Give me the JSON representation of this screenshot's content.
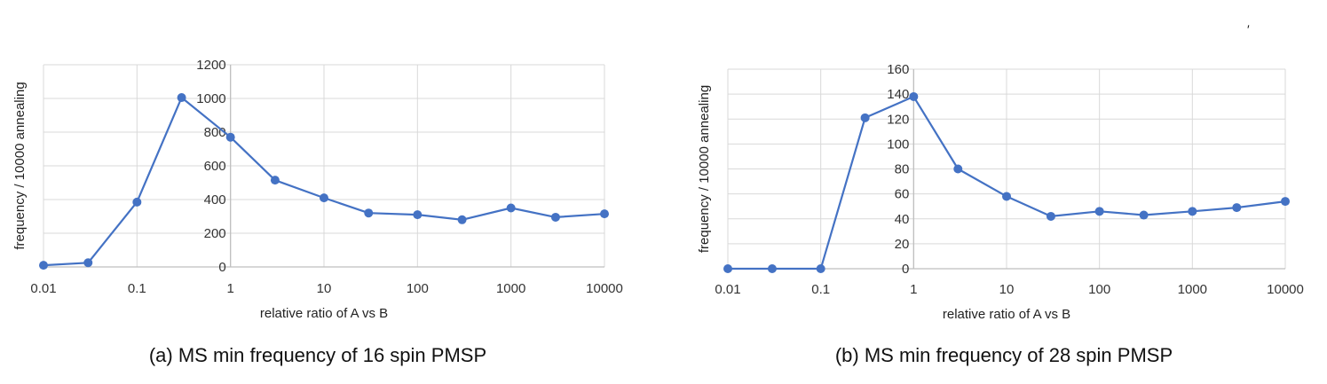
{
  "stray_mark": "′",
  "chart_data": [
    {
      "type": "line",
      "caption": "(a) MS min frequency of 16 spin PMSP",
      "xlabel": "relative ratio of A vs B",
      "ylabel": "frequency / 10000 annealing",
      "xscale": "log",
      "xlim": [
        0.01,
        10000
      ],
      "ylim": [
        0,
        1200
      ],
      "xticks": [
        "0.01",
        "0.1",
        "1",
        "10",
        "100",
        "1000",
        "10000"
      ],
      "yticks": [
        "0",
        "200",
        "400",
        "600",
        "800",
        "1000",
        "1200"
      ],
      "grid": true,
      "y_axis_crosses_at": 1,
      "series_color": "#4472c4",
      "x": [
        0.01,
        0.03,
        0.1,
        0.3,
        1,
        3,
        10,
        30,
        100,
        300,
        1000,
        3000,
        10000
      ],
      "y": [
        10,
        25,
        385,
        1005,
        770,
        515,
        410,
        320,
        310,
        280,
        350,
        295,
        315
      ]
    },
    {
      "type": "line",
      "caption": "(b) MS min frequency of 28 spin PMSP",
      "xlabel": "relative ratio of A vs B",
      "ylabel": "frequency / 10000 annealing",
      "xscale": "log",
      "xlim": [
        0.01,
        10000
      ],
      "ylim": [
        0,
        160
      ],
      "xticks": [
        "0.01",
        "0.1",
        "1",
        "10",
        "100",
        "1000",
        "10000"
      ],
      "yticks": [
        "0",
        "20",
        "40",
        "60",
        "80",
        "100",
        "120",
        "140",
        "160"
      ],
      "grid": true,
      "y_axis_crosses_at": 1,
      "series_color": "#4472c4",
      "x": [
        0.01,
        0.03,
        0.1,
        0.3,
        1,
        3,
        10,
        30,
        100,
        300,
        1000,
        3000,
        10000
      ],
      "y": [
        0,
        0,
        0,
        121,
        138,
        80,
        58,
        42,
        46,
        43,
        46,
        49,
        54
      ]
    }
  ]
}
